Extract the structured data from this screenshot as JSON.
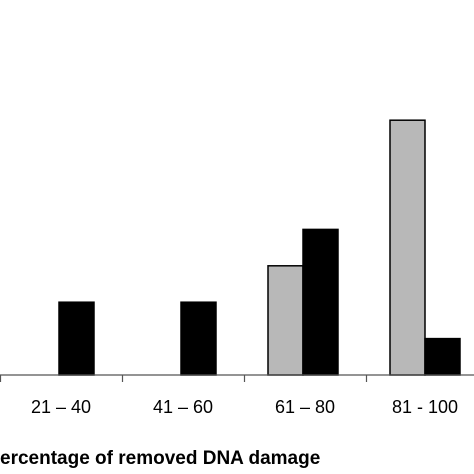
{
  "chart_data": {
    "type": "bar",
    "xlabel": "ercentage of removed DNA damage",
    "categories": [
      "21 – 40",
      "41 – 60",
      "61 – 80",
      "81 - 100"
    ],
    "series": [
      {
        "values": [
          0,
          0,
          3,
          7
        ],
        "color": "#b8b8b8"
      },
      {
        "values": [
          2,
          2,
          4,
          1
        ],
        "color": "#000000"
      }
    ],
    "ylim": [
      0,
      8.5
    ],
    "grid": false,
    "legend": "none"
  }
}
